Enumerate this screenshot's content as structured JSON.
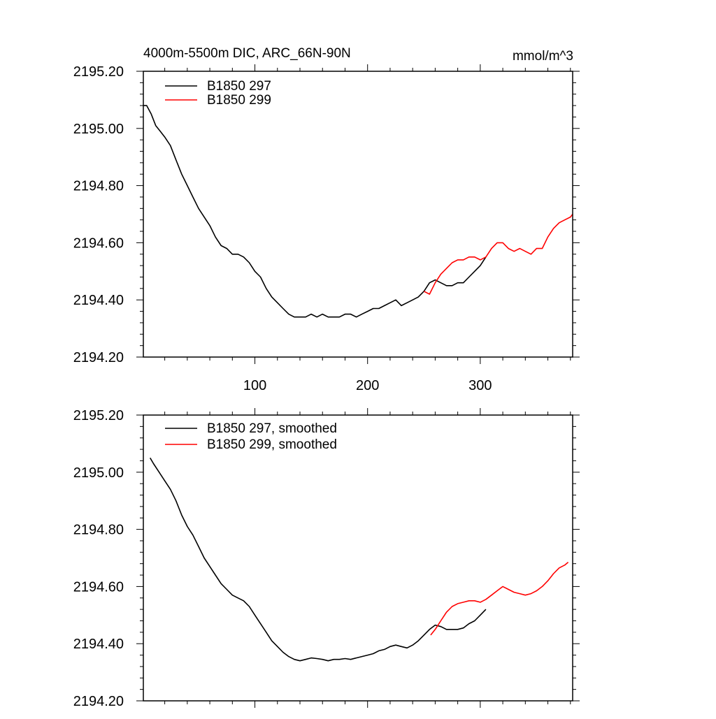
{
  "chart_data": [
    {
      "type": "line",
      "title": "4000m-5500m DIC, ARC_66N-90N",
      "units": "mmol/m^3",
      "xlabel": "",
      "ylabel": "",
      "xlim": [
        1,
        382
      ],
      "ylim": [
        2194.2,
        2195.2
      ],
      "x_ticks": [
        100,
        200,
        300
      ],
      "x_tick_labels": [
        "100",
        "200",
        "300"
      ],
      "y_ticks": [
        2194.2,
        2194.4,
        2194.6,
        2194.8,
        2195.0,
        2195.2
      ],
      "y_tick_labels": [
        "2194.20",
        "2194.40",
        "2194.60",
        "2194.80",
        "2195.00",
        "2195.20"
      ],
      "legend_position": "top-left",
      "series": [
        {
          "name": "B1850 297",
          "color": "#000000",
          "x": [
            1,
            4,
            8,
            12,
            16,
            20,
            25,
            30,
            35,
            40,
            45,
            50,
            55,
            60,
            65,
            70,
            75,
            80,
            85,
            90,
            95,
            100,
            105,
            110,
            115,
            120,
            125,
            130,
            135,
            140,
            145,
            150,
            155,
            160,
            165,
            170,
            175,
            180,
            185,
            190,
            195,
            200,
            205,
            210,
            215,
            220,
            225,
            230,
            235,
            240,
            245,
            250,
            255,
            260,
            265,
            270,
            275,
            280,
            285,
            290,
            295,
            300,
            305
          ],
          "y": [
            2195.08,
            2195.08,
            2195.05,
            2195.01,
            2194.99,
            2194.97,
            2194.94,
            2194.89,
            2194.84,
            2194.8,
            2194.76,
            2194.72,
            2194.69,
            2194.66,
            2194.62,
            2194.59,
            2194.58,
            2194.56,
            2194.56,
            2194.55,
            2194.53,
            2194.5,
            2194.48,
            2194.44,
            2194.41,
            2194.39,
            2194.37,
            2194.35,
            2194.34,
            2194.34,
            2194.34,
            2194.35,
            2194.34,
            2194.35,
            2194.34,
            2194.34,
            2194.34,
            2194.35,
            2194.35,
            2194.34,
            2194.35,
            2194.36,
            2194.37,
            2194.37,
            2194.38,
            2194.39,
            2194.4,
            2194.38,
            2194.39,
            2194.4,
            2194.41,
            2194.43,
            2194.46,
            2194.47,
            2194.46,
            2194.45,
            2194.45,
            2194.46,
            2194.46,
            2194.48,
            2194.5,
            2194.52,
            2194.55
          ]
        },
        {
          "name": "B1850 299",
          "color": "#ff0000",
          "x": [
            250,
            255,
            260,
            265,
            270,
            275,
            280,
            285,
            290,
            295,
            300,
            305,
            310,
            315,
            320,
            325,
            330,
            335,
            340,
            345,
            350,
            355,
            360,
            365,
            370,
            375,
            380,
            382
          ],
          "y": [
            2194.43,
            2194.42,
            2194.46,
            2194.49,
            2194.51,
            2194.53,
            2194.54,
            2194.54,
            2194.55,
            2194.55,
            2194.54,
            2194.55,
            2194.58,
            2194.6,
            2194.6,
            2194.58,
            2194.57,
            2194.58,
            2194.57,
            2194.56,
            2194.58,
            2194.58,
            2194.62,
            2194.65,
            2194.67,
            2194.68,
            2194.69,
            2194.7
          ]
        }
      ]
    },
    {
      "type": "line",
      "title": "",
      "xlabel": "",
      "ylabel": "",
      "xlim": [
        1,
        382
      ],
      "ylim": [
        2194.2,
        2195.2
      ],
      "x_ticks": [
        100,
        200,
        300
      ],
      "x_tick_labels": [],
      "y_ticks": [
        2194.2,
        2194.4,
        2194.6,
        2194.8,
        2195.0,
        2195.2
      ],
      "y_tick_labels": [
        "2194.20",
        "2194.40",
        "2194.60",
        "2194.80",
        "2195.00",
        "2195.20"
      ],
      "legend_position": "top-left",
      "series": [
        {
          "name": "B1850 297, smoothed",
          "color": "#000000",
          "x": [
            7,
            10,
            15,
            20,
            25,
            30,
            35,
            40,
            45,
            50,
            55,
            60,
            65,
            70,
            75,
            80,
            85,
            90,
            95,
            100,
            105,
            110,
            115,
            120,
            125,
            130,
            135,
            140,
            145,
            150,
            155,
            160,
            165,
            170,
            175,
            180,
            185,
            190,
            195,
            200,
            205,
            210,
            215,
            220,
            225,
            230,
            235,
            240,
            245,
            250,
            255,
            260,
            265,
            270,
            275,
            280,
            285,
            290,
            295,
            300,
            305
          ],
          "y": [
            2195.05,
            2195.03,
            2195.0,
            2194.97,
            2194.94,
            2194.9,
            2194.85,
            2194.81,
            2194.78,
            2194.74,
            2194.7,
            2194.67,
            2194.64,
            2194.61,
            2194.59,
            2194.57,
            2194.56,
            2194.55,
            2194.53,
            2194.5,
            2194.47,
            2194.44,
            2194.41,
            2194.39,
            2194.37,
            2194.355,
            2194.345,
            2194.34,
            2194.345,
            2194.35,
            2194.348,
            2194.345,
            2194.34,
            2194.345,
            2194.345,
            2194.348,
            2194.345,
            2194.35,
            2194.355,
            2194.36,
            2194.365,
            2194.375,
            2194.38,
            2194.39,
            2194.395,
            2194.39,
            2194.385,
            2194.395,
            2194.41,
            2194.43,
            2194.45,
            2194.465,
            2194.46,
            2194.45,
            2194.45,
            2194.45,
            2194.455,
            2194.47,
            2194.48,
            2194.5,
            2194.52
          ]
        },
        {
          "name": "B1850 299, smoothed",
          "color": "#ff0000",
          "x": [
            256,
            260,
            265,
            270,
            275,
            280,
            285,
            290,
            295,
            300,
            305,
            310,
            315,
            320,
            325,
            330,
            335,
            340,
            345,
            350,
            355,
            360,
            365,
            370,
            375,
            378
          ],
          "y": [
            2194.43,
            2194.45,
            2194.48,
            2194.51,
            2194.53,
            2194.54,
            2194.545,
            2194.55,
            2194.55,
            2194.545,
            2194.555,
            2194.57,
            2194.585,
            2194.6,
            2194.59,
            2194.58,
            2194.575,
            2194.57,
            2194.575,
            2194.585,
            2194.6,
            2194.62,
            2194.645,
            2194.665,
            2194.675,
            2194.685
          ]
        }
      ]
    }
  ]
}
